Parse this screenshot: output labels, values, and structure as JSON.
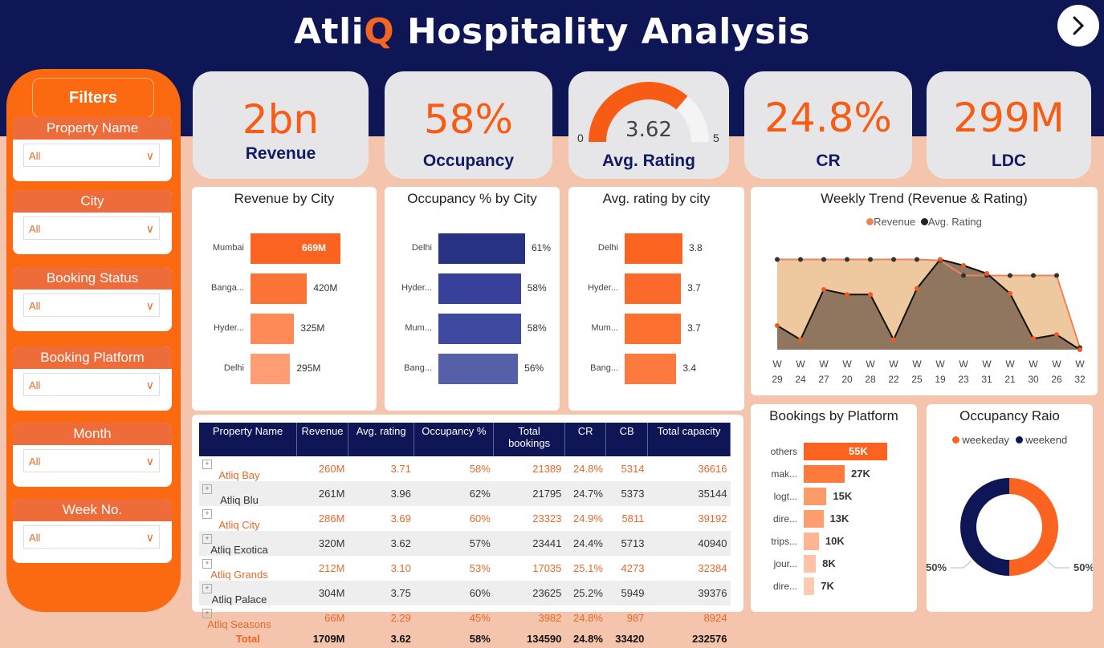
{
  "header": {
    "title_part1": "Atli",
    "title_accent": "Q",
    "title_part2": " Hospitality Analysis",
    "nav_icon": "chevron-right-icon"
  },
  "filters": {
    "title": "Filters",
    "items": [
      {
        "label": "Property Name",
        "value": "All"
      },
      {
        "label": "City",
        "value": "All"
      },
      {
        "label": "Booking Status",
        "value": "All"
      },
      {
        "label": "Booking Platform",
        "value": "All"
      },
      {
        "label": "Month",
        "value": "All"
      },
      {
        "label": "Week No.",
        "value": "All"
      }
    ]
  },
  "kpis": {
    "revenue": {
      "value": "2bn",
      "label": "Revenue"
    },
    "occupancy": {
      "value": "58%",
      "label": "Occupancy"
    },
    "rating": {
      "value": "3.62",
      "label": "Avg. Rating",
      "min": "0",
      "max": "5",
      "gauge_fraction": 0.724
    },
    "cr": {
      "value": "24.8%",
      "label": "CR"
    },
    "ldc": {
      "value": "299M",
      "label": "LDC"
    }
  },
  "colors": {
    "navy": "#0f1655",
    "orange": "#f75c14",
    "peach_bg": "#f4c4ac",
    "card_grey": "#e6e6e8"
  },
  "chart_data": [
    {
      "type": "bar",
      "title": "Revenue by City",
      "categories": [
        "Mumbai",
        "Banga...",
        "Hyder...",
        "Delhi"
      ],
      "values": [
        669,
        420,
        325,
        295
      ],
      "labels": [
        "669M",
        "420M",
        "325M",
        "295M"
      ],
      "colors": [
        "#fb6420",
        "#fc7435",
        "#fd8a57",
        "#fe9d73"
      ]
    },
    {
      "type": "bar",
      "title": "Occupancy % by City",
      "categories": [
        "Delhi",
        "Hyder...",
        "Mum...",
        "Bang..."
      ],
      "values": [
        61,
        58,
        58,
        56
      ],
      "labels": [
        "61%",
        "58%",
        "58%",
        "56%"
      ],
      "colors": [
        "#283282",
        "#37419a",
        "#3e49a0",
        "#5560a8"
      ]
    },
    {
      "type": "bar",
      "title": "Avg. rating by city",
      "categories": [
        "Delhi",
        "Hyder...",
        "Mum...",
        "Bang..."
      ],
      "values": [
        3.8,
        3.7,
        3.7,
        3.4
      ],
      "labels": [
        "3.8",
        "3.7",
        "3.7",
        "3.4"
      ],
      "colors": [
        "#fb6420",
        "#fb6a2a",
        "#fc7030",
        "#fd7a3e"
      ]
    },
    {
      "type": "area",
      "title": "Weekly Trend (Revenue & Rating)",
      "x": [
        "W 29",
        "W 24",
        "W 27",
        "W 20",
        "W 28",
        "W 22",
        "W 25",
        "W 19",
        "W 23",
        "W 31",
        "W 21",
        "W 30",
        "W 26",
        "W 32"
      ],
      "x_top": [
        "W",
        "W",
        "W",
        "W",
        "W",
        "W",
        "W",
        "W",
        "W",
        "W",
        "W",
        "W",
        "W",
        "W"
      ],
      "x_bottom": [
        "29",
        "24",
        "27",
        "20",
        "28",
        "22",
        "25",
        "19",
        "23",
        "31",
        "21",
        "30",
        "26",
        "32"
      ],
      "series": [
        {
          "name": "Revenue",
          "color": "#e8845c",
          "values": [
            0.9,
            0.9,
            0.9,
            0.9,
            0.9,
            0.9,
            0.9,
            0.89,
            0.74,
            0.74,
            0.74,
            0.74,
            0.74,
            0.02
          ]
        },
        {
          "name": "Avg. Rating",
          "color": "#222222",
          "values": [
            0.24,
            0.1,
            0.6,
            0.55,
            0.55,
            0.1,
            0.61,
            0.9,
            0.84,
            0.76,
            0.56,
            0.11,
            0.15,
            0.0
          ]
        }
      ],
      "legend": "top"
    },
    {
      "type": "bar",
      "title": "Bookings by Platform",
      "categories": [
        "others",
        "mak...",
        "logt...",
        "dire...",
        "trips...",
        "jour...",
        "dire..."
      ],
      "values": [
        55,
        27,
        15,
        13,
        10,
        8,
        7
      ],
      "labels": [
        "55K",
        "27K",
        "15K",
        "13K",
        "10K",
        "8K",
        "7K"
      ],
      "colors": [
        "#fb6420",
        "#fc7a3c",
        "#fd9a6a",
        "#fd9d70",
        "#feb591",
        "#fec3a6",
        "#fecbb1"
      ]
    },
    {
      "type": "pie",
      "title": "Occupancy Raio",
      "categories": [
        "weekeday",
        "weekend"
      ],
      "values": [
        50,
        50
      ],
      "labels": [
        "50%",
        "50%"
      ],
      "colors": [
        "#fb6420",
        "#0f1655"
      ]
    }
  ],
  "table": {
    "columns": [
      "Property Name",
      "Revenue",
      "Avg. rating",
      "Occupancy %",
      "Total bookings",
      "CR",
      "CB",
      "Total capacity"
    ],
    "rows": [
      [
        "Atliq Bay",
        "260M",
        "3.71",
        "58%",
        "21389",
        "24.8%",
        "5314",
        "36616"
      ],
      [
        "Atliq Blu",
        "261M",
        "3.96",
        "62%",
        "21795",
        "24.7%",
        "5373",
        "35144"
      ],
      [
        "Atliq City",
        "286M",
        "3.69",
        "60%",
        "23323",
        "24.9%",
        "5811",
        "39192"
      ],
      [
        "Atliq Exotica",
        "320M",
        "3.62",
        "57%",
        "23441",
        "24.4%",
        "5713",
        "40940"
      ],
      [
        "Atliq Grands",
        "212M",
        "3.10",
        "53%",
        "17035",
        "25.1%",
        "4273",
        "32384"
      ],
      [
        "Atliq Palace",
        "304M",
        "3.75",
        "60%",
        "23625",
        "25.2%",
        "5949",
        "39376"
      ],
      [
        "Atliq Seasons",
        "66M",
        "2.29",
        "45%",
        "3982",
        "24.8%",
        "987",
        "8924"
      ]
    ],
    "total": [
      "Total",
      "1709M",
      "3.62",
      "58%",
      "134590",
      "24.8%",
      "33420",
      "232576"
    ]
  }
}
